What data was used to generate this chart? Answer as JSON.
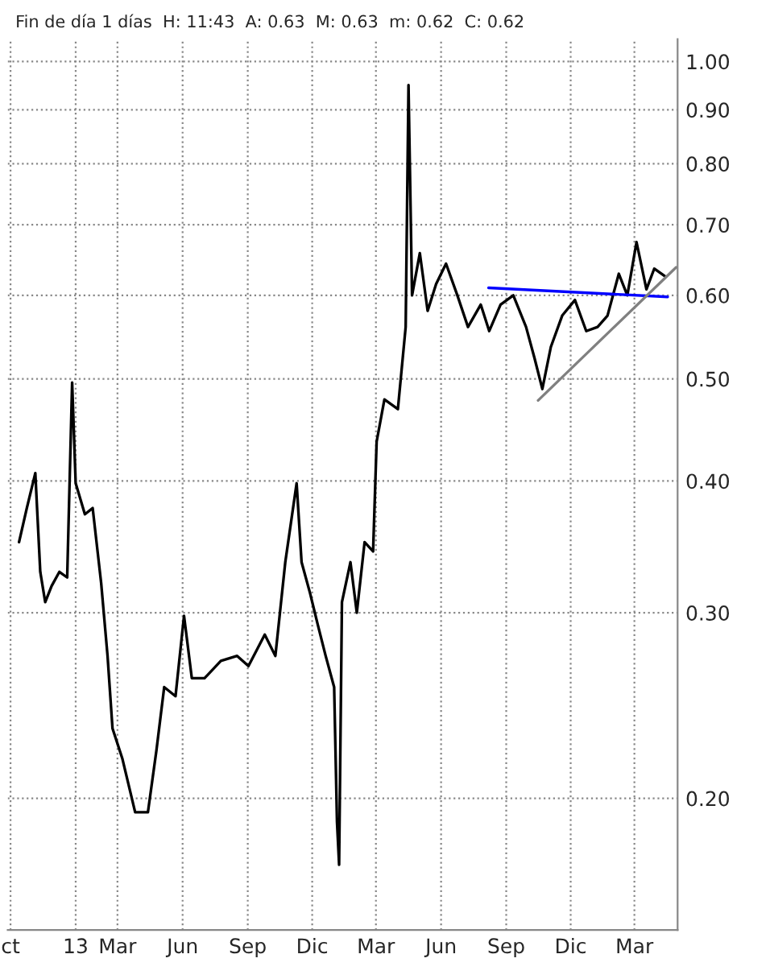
{
  "chart_data": {
    "type": "line",
    "title": "Fin de día 1 días  H: 11:43  A: 0.63  M: 0.63  m: 0.62  C: 0.62",
    "log": "y",
    "grid": true,
    "marker": "none",
    "line_style": "solid",
    "xlim": [
      "2012-09-27",
      "2015-05-01"
    ],
    "ylim": [
      0.15,
      1.05
    ],
    "xticks": [
      {
        "value": "2012-10-01",
        "label": "ct"
      },
      {
        "value": "2013-01-01",
        "label": "13"
      },
      {
        "value": "2013-03-01",
        "label": "Mar"
      },
      {
        "value": "2013-06-01",
        "label": "Jun"
      },
      {
        "value": "2013-09-01",
        "label": "Sep"
      },
      {
        "value": "2013-12-01",
        "label": "Dic"
      },
      {
        "value": "2014-03-01",
        "label": "Mar"
      },
      {
        "value": "2014-06-01",
        "label": "Jun"
      },
      {
        "value": "2014-09-01",
        "label": "Sep"
      },
      {
        "value": "2014-12-01",
        "label": "Dic"
      },
      {
        "value": "2015-03-01",
        "label": "Mar"
      }
    ],
    "yticks": [
      {
        "value": 0.2,
        "label": "0.20"
      },
      {
        "value": 0.3,
        "label": "0.30"
      },
      {
        "value": 0.4,
        "label": "0.40"
      },
      {
        "value": 0.5,
        "label": "0.50"
      },
      {
        "value": 0.6,
        "label": "0.60"
      },
      {
        "value": 0.7,
        "label": "0.70"
      },
      {
        "value": 0.8,
        "label": "0.80"
      },
      {
        "value": 0.9,
        "label": "0.90"
      },
      {
        "value": 1.0,
        "label": "1.00"
      }
    ],
    "series": [
      {
        "color": "#000000",
        "x": [
          "2012-10-13",
          "2012-10-24",
          "2012-11-05",
          "2012-11-12",
          "2012-11-19",
          "2012-11-28",
          "2012-12-09",
          "2012-12-20",
          "2012-12-27",
          "2013-01-01",
          "2013-01-14",
          "2013-01-25",
          "2013-02-06",
          "2013-02-15",
          "2013-02-22",
          "2013-03-08",
          "2013-03-26",
          "2013-04-13",
          "2013-04-25",
          "2013-05-06",
          "2013-05-22",
          "2013-06-03",
          "2013-06-14",
          "2013-07-02",
          "2013-07-25",
          "2013-08-17",
          "2013-09-02",
          "2013-09-25",
          "2013-10-10",
          "2013-10-24",
          "2013-11-09",
          "2013-11-16",
          "2013-11-28",
          "2013-12-09",
          "2013-12-20",
          "2014-01-01",
          "2014-01-05",
          "2014-01-08",
          "2014-01-12",
          "2014-01-24",
          "2014-02-02",
          "2014-02-13",
          "2014-02-25",
          "2014-03-02",
          "2014-03-13",
          "2014-04-01",
          "2014-04-12",
          "2014-04-16",
          "2014-04-21",
          "2014-05-02",
          "2014-05-13",
          "2014-05-25",
          "2014-06-08",
          "2014-06-24",
          "2014-07-09",
          "2014-07-27",
          "2014-08-08",
          "2014-08-24",
          "2014-09-11",
          "2014-09-29",
          "2014-10-11",
          "2014-10-22",
          "2014-11-03",
          "2014-11-19",
          "2014-12-07",
          "2014-12-23",
          "2015-01-08",
          "2015-01-22",
          "2015-02-07",
          "2015-02-19",
          "2015-03-04",
          "2015-03-18",
          "2015-03-29",
          "2015-04-14"
        ],
        "values": [
          0.35,
          0.377,
          0.407,
          0.328,
          0.307,
          0.318,
          0.328,
          0.324,
          0.496,
          0.398,
          0.372,
          0.377,
          0.32,
          0.273,
          0.233,
          0.218,
          0.194,
          0.194,
          0.222,
          0.255,
          0.25,
          0.298,
          0.26,
          0.26,
          0.27,
          0.273,
          0.267,
          0.286,
          0.273,
          0.335,
          0.398,
          0.335,
          0.313,
          0.292,
          0.273,
          0.255,
          0.19,
          0.173,
          0.307,
          0.335,
          0.3,
          0.35,
          0.343,
          0.436,
          0.478,
          0.468,
          0.56,
          0.95,
          0.6,
          0.658,
          0.58,
          0.615,
          0.643,
          0.6,
          0.56,
          0.588,
          0.555,
          0.588,
          0.6,
          0.56,
          0.523,
          0.489,
          0.536,
          0.574,
          0.594,
          0.555,
          0.56,
          0.574,
          0.629,
          0.6,
          0.674,
          0.608,
          0.636,
          0.625
        ]
      },
      {
        "color": "#0000ff",
        "x": [
          "2014-08-07",
          "2015-04-17"
        ],
        "values": [
          0.61,
          0.598
        ]
      },
      {
        "color": "#808080",
        "x": [
          "2014-10-16",
          "2015-04-29"
        ],
        "values": [
          0.477,
          0.638
        ]
      }
    ]
  }
}
